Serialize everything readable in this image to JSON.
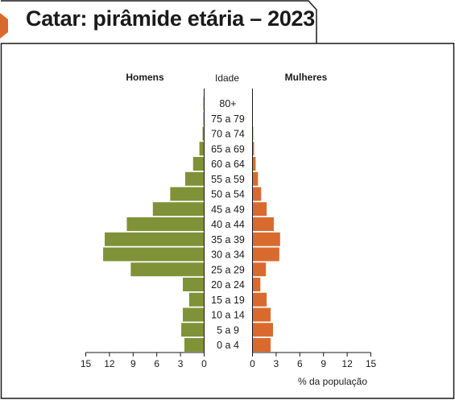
{
  "header": {
    "title": "Catar: pirâmide etária – 2023"
  },
  "colors": {
    "men": "#7f9237",
    "women": "#d96a2e",
    "accent": "#d96a2e",
    "text": "#1a1a1a"
  },
  "chart_data": {
    "type": "bar",
    "orientation": "horizontal-pyramid",
    "headers": {
      "left": "Homens",
      "center": "Idade",
      "right": "Mulheres"
    },
    "xlabel": "% da população",
    "categories": [
      "80+",
      "75 a 79",
      "70 a 74",
      "65 a 69",
      "60 a 64",
      "55 a 59",
      "50 a 54",
      "45 a 49",
      "40 a 44",
      "35 a 39",
      "30 a 34",
      "25 a 29",
      "20 a 24",
      "15 a 19",
      "10 a 14",
      "5 a 9",
      "0 a 4"
    ],
    "series": [
      {
        "name": "Homens",
        "values": [
          0.1,
          0.1,
          0.2,
          0.6,
          1.4,
          2.4,
          4.3,
          6.5,
          9.8,
          12.6,
          12.8,
          9.3,
          2.7,
          1.9,
          2.7,
          2.9,
          2.5
        ]
      },
      {
        "name": "Mulheres",
        "values": [
          0.05,
          0.05,
          0.1,
          0.2,
          0.4,
          0.7,
          1.1,
          1.8,
          2.7,
          3.5,
          3.4,
          1.7,
          1.0,
          1.8,
          2.3,
          2.6,
          2.3
        ]
      }
    ],
    "xlim": [
      0,
      15
    ],
    "xticks": [
      0,
      3,
      6,
      9,
      12,
      15
    ],
    "xtick_labels": [
      "0",
      "3",
      "6",
      "9",
      "12",
      "15"
    ]
  }
}
